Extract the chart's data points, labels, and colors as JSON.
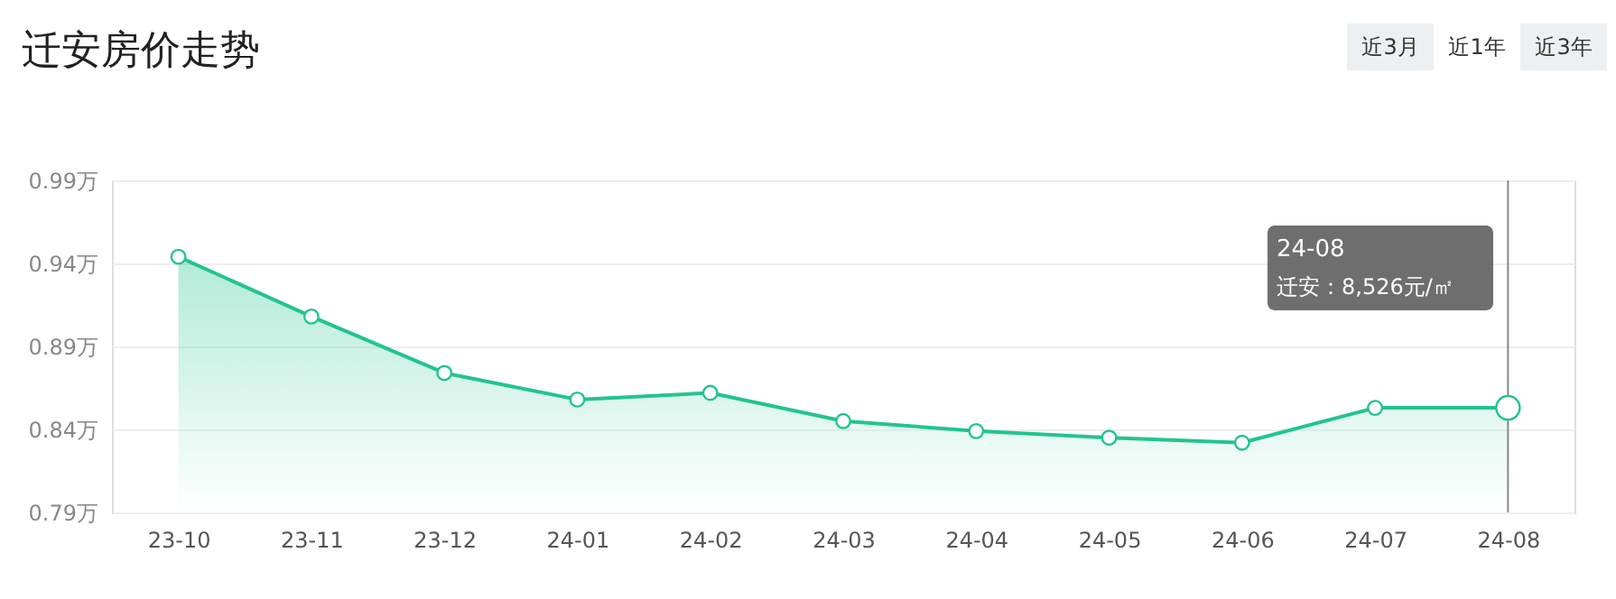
{
  "chart_data": {
    "type": "area",
    "title": "迁安房价走势",
    "categories": [
      "23-10",
      "23-11",
      "23-12",
      "24-01",
      "24-02",
      "24-03",
      "24-04",
      "24-05",
      "24-06",
      "24-07",
      "24-08"
    ],
    "series": [
      {
        "color": "#22c58b",
        "values": [
          0.944,
          0.908,
          0.874,
          0.858,
          0.862,
          0.845,
          0.839,
          0.835,
          0.832,
          0.853,
          0.853
        ]
      }
    ],
    "ylim": [
      0.79,
      0.99
    ],
    "yticks": [
      {
        "value": 0.79,
        "label": "0.79万"
      },
      {
        "value": 0.84,
        "label": "0.84万"
      },
      {
        "value": 0.89,
        "label": "0.89万"
      },
      {
        "value": 0.94,
        "label": "0.94万"
      },
      {
        "value": 0.99,
        "label": "0.99万"
      }
    ],
    "grid": "y",
    "marker": "circle",
    "line_style": "solid",
    "ref_lines": [
      {
        "axis": "x",
        "value": "24-08",
        "color": "#888888"
      }
    ],
    "annotations": [
      "近3月",
      "近1年",
      "近3年",
      "24-08",
      "迁安：8,526元/㎡"
    ]
  }
}
